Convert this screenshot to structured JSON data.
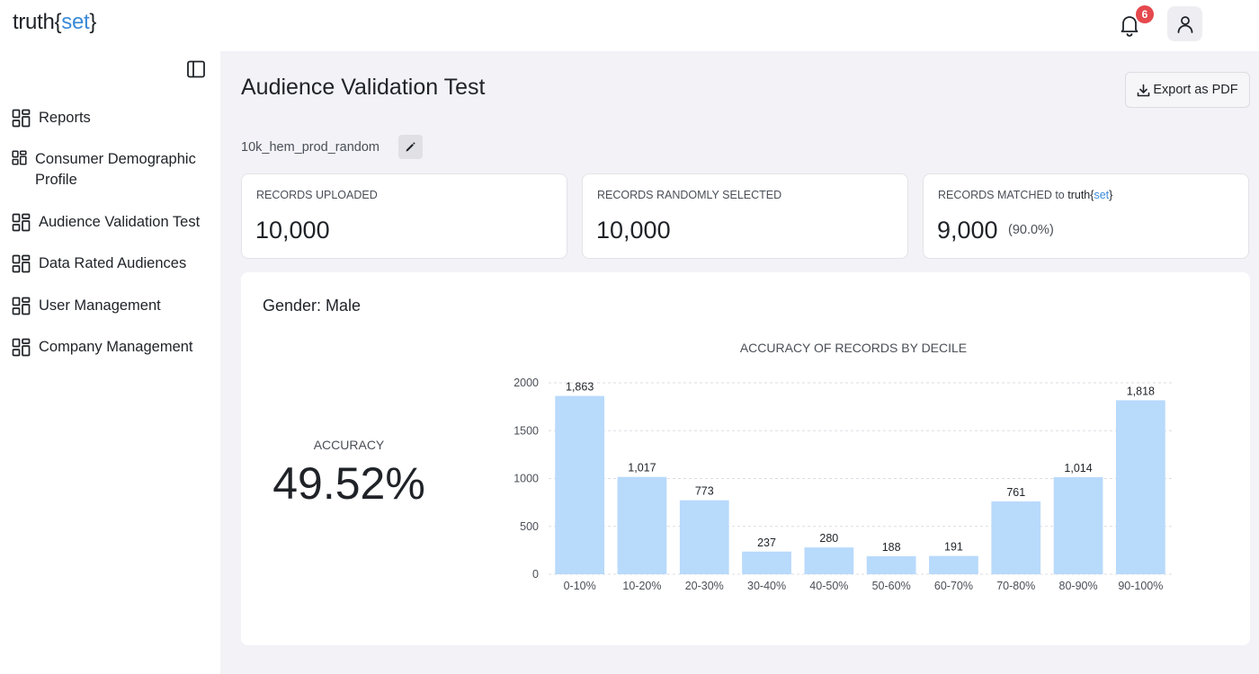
{
  "brand": {
    "logo_text": "truth",
    "logo_accent": "set"
  },
  "header": {
    "notification_count": "6"
  },
  "sidebar": {
    "items": [
      {
        "label": "Reports"
      },
      {
        "label": "Consumer Demographic Profile"
      },
      {
        "label": "Audience Validation Test"
      },
      {
        "label": "Data Rated Audiences"
      },
      {
        "label": "User Management"
      },
      {
        "label": "Company Management"
      }
    ]
  },
  "page": {
    "title": "Audience Validation Test",
    "export_label": "Export as PDF",
    "file_name": "10k_hem_prod_random"
  },
  "stats": [
    {
      "label": "RECORDS UPLOADED",
      "value": "10,000"
    },
    {
      "label": "RECORDS RANDOMLY SELECTED",
      "value": "10,000"
    },
    {
      "label": "RECORDS MATCHED to",
      "value": "9,000",
      "percent": "(90.0%)"
    }
  ],
  "section": {
    "title": "Gender: Male",
    "accuracy_label": "ACCURACY",
    "accuracy_value": "49.52%"
  },
  "chart_data": {
    "type": "bar",
    "title": "ACCURACY OF RECORDS BY DECILE",
    "categories": [
      "0-10%",
      "10-20%",
      "20-30%",
      "30-40%",
      "40-50%",
      "50-60%",
      "60-70%",
      "70-80%",
      "80-90%",
      "90-100%"
    ],
    "values": [
      1863,
      1017,
      773,
      237,
      280,
      188,
      191,
      761,
      1014,
      1818
    ],
    "value_labels": [
      "1,863",
      "1,017",
      "773",
      "237",
      "280",
      "188",
      "191",
      "761",
      "1,014",
      "1,818"
    ],
    "ylim": [
      0,
      2000
    ],
    "yticks": [
      0,
      500,
      1000,
      1500,
      2000
    ],
    "grid": true,
    "bar_color": "#b8dafb",
    "xlabel": "",
    "ylabel": ""
  },
  "colors": {
    "accent": "#3a8ad9",
    "badge": "#e5484d"
  }
}
